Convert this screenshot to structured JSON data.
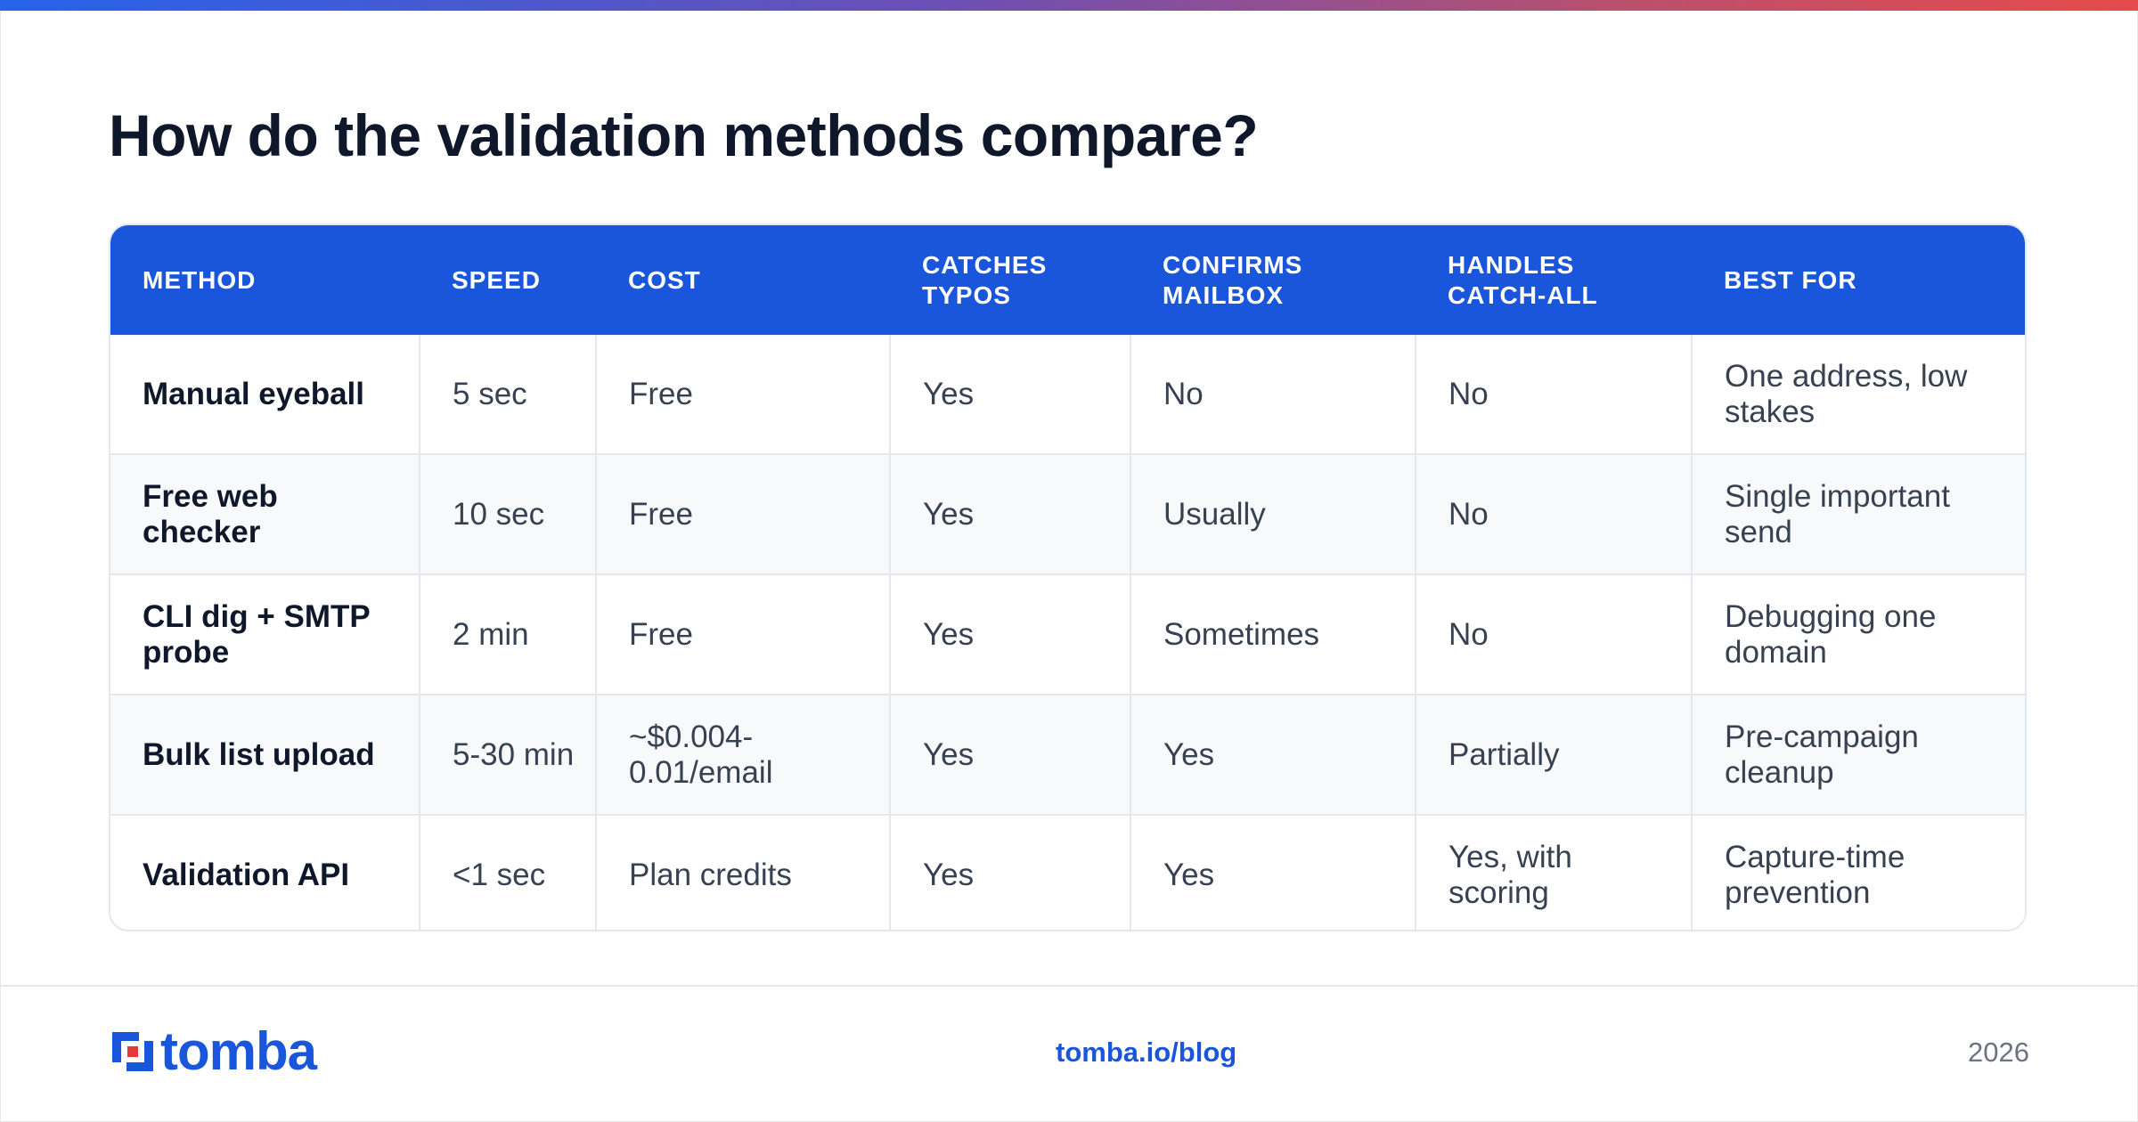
{
  "title": "How do the validation methods compare?",
  "colors": {
    "header_bg": "#1a56db",
    "accent": "#1a56db",
    "logo_red": "#e63939"
  },
  "table": {
    "headers": [
      [
        "METHOD"
      ],
      [
        "SPEED"
      ],
      [
        "COST"
      ],
      [
        "CATCHES",
        "TYPOS"
      ],
      [
        "CONFIRMS",
        "MAILBOX"
      ],
      [
        "HANDLES",
        "CATCH-ALL"
      ],
      [
        "BEST FOR"
      ]
    ],
    "rows": [
      [
        "Manual eyeball",
        "5 sec",
        "Free",
        "Yes",
        "No",
        "No",
        "One address, low stakes"
      ],
      [
        "Free web checker",
        "10 sec",
        "Free",
        "Yes",
        "Usually",
        "No",
        "Single important send"
      ],
      [
        "CLI dig + SMTP probe",
        "2 min",
        "Free",
        "Yes",
        "Sometimes",
        "No",
        "Debugging one domain"
      ],
      [
        "Bulk list upload",
        "5-30 min",
        "~$0.004-0.01/email",
        "Yes",
        "Yes",
        "Partially",
        "Pre-campaign cleanup"
      ],
      [
        "Validation API",
        "<1 sec",
        "Plan credits",
        "Yes",
        "Yes",
        "Yes, with scoring",
        "Capture-time prevention"
      ]
    ]
  },
  "footer": {
    "logo_text": "tomba",
    "logo_icon": "tomba-logo-icon",
    "link": "tomba.io/blog",
    "year": "2026"
  }
}
